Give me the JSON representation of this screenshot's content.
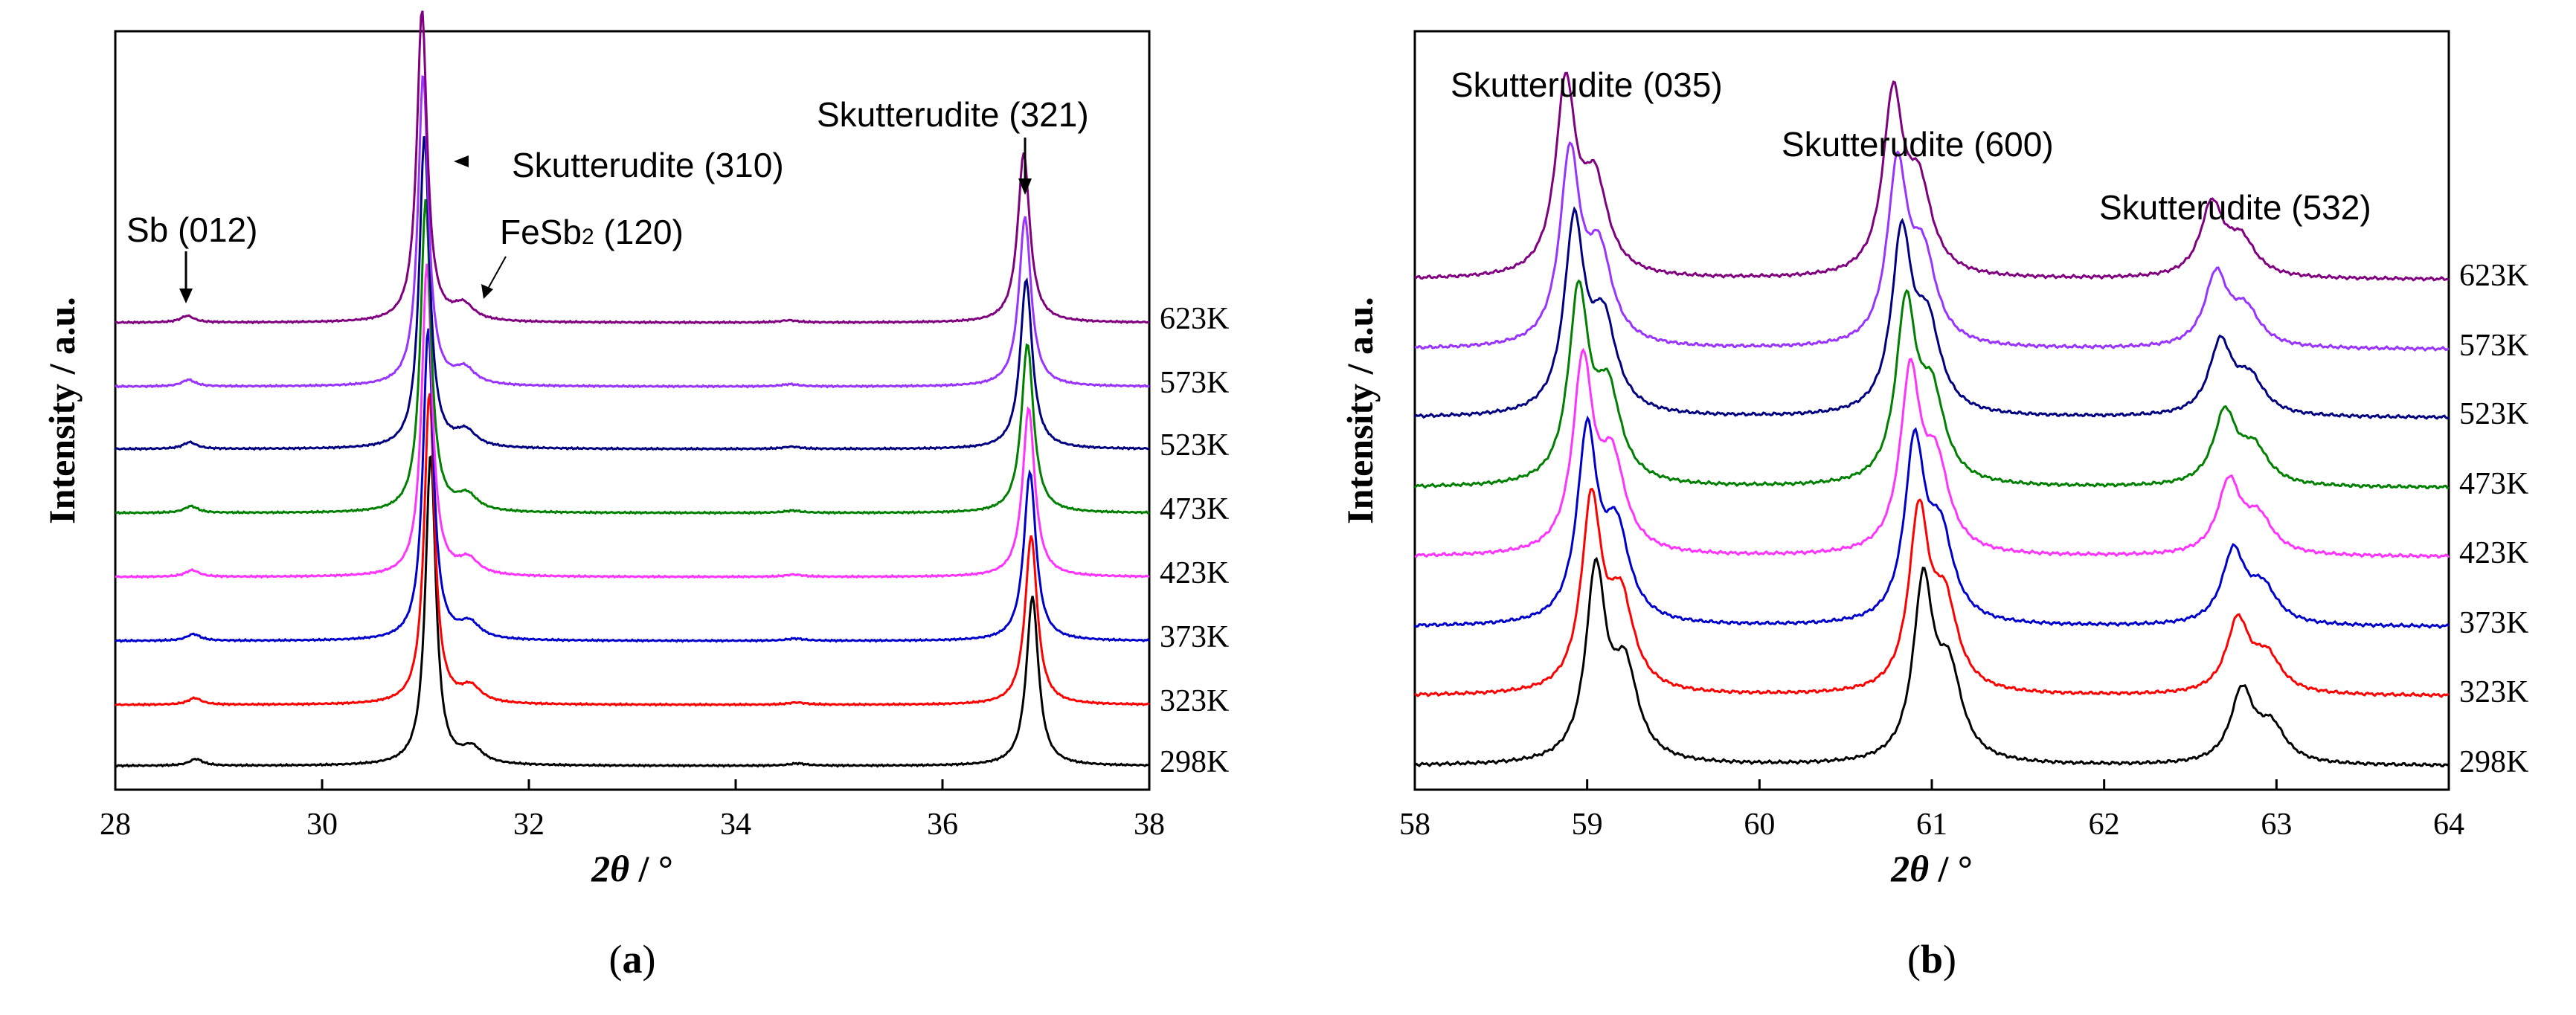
{
  "chart_data": [
    {
      "type": "line",
      "panel_label_open": "(",
      "panel_label_letter": "a",
      "panel_label_close": ")",
      "xlabel_theta": "2θ",
      "xlabel_unit": " / °",
      "ylabel": "Intensity / a.u.",
      "xlim": [
        28,
        38
      ],
      "xticks": [
        "28",
        "30",
        "32",
        "34",
        "36",
        "38"
      ],
      "series": [
        {
          "name": "298K",
          "color": "#000000",
          "peak_heights": [
            0.15,
            7.0,
            0.35,
            0.05,
            3.8
          ]
        },
        {
          "name": "323K",
          "color": "#ff0000",
          "peak_heights": [
            0.15,
            7.0,
            0.35,
            0.05,
            3.8
          ]
        },
        {
          "name": "373K",
          "color": "#0000cc",
          "peak_heights": [
            0.15,
            7.0,
            0.35,
            0.05,
            3.8
          ]
        },
        {
          "name": "423K",
          "color": "#ff33ff",
          "peak_heights": [
            0.15,
            7.0,
            0.35,
            0.05,
            3.8
          ]
        },
        {
          "name": "473K",
          "color": "#008000",
          "peak_heights": [
            0.15,
            7.0,
            0.35,
            0.05,
            3.8
          ]
        },
        {
          "name": "523K",
          "color": "#000080",
          "peak_heights": [
            0.15,
            7.0,
            0.35,
            0.05,
            3.8
          ]
        },
        {
          "name": "573K",
          "color": "#9933ff",
          "peak_heights": [
            0.15,
            7.0,
            0.35,
            0.05,
            3.8
          ]
        },
        {
          "name": "623K",
          "color": "#800080",
          "peak_heights": [
            0.15,
            7.0,
            0.35,
            0.05,
            3.8
          ]
        }
      ],
      "annotations": [
        {
          "name": "sb-012",
          "text": "Sb (012)"
        },
        {
          "name": "skutterudite-310",
          "text": "Skutterudite (310)"
        },
        {
          "name": "fesb2-120",
          "text_pre": "FeSb",
          "text_sub": "2",
          "text_post": " (120)"
        },
        {
          "name": "skutterudite-321",
          "text": "Skutterudite (321)"
        }
      ]
    },
    {
      "type": "line",
      "panel_label_open": "(",
      "panel_label_letter": "b",
      "panel_label_close": ")",
      "xlabel_theta": "2θ",
      "xlabel_unit": " / °",
      "ylabel": "Intensity / a.u.",
      "xlim": [
        58,
        64
      ],
      "xticks": [
        "58",
        "59",
        "60",
        "61",
        "62",
        "63",
        "64"
      ],
      "series": [
        {
          "name": "298K",
          "color": "#000000"
        },
        {
          "name": "323K",
          "color": "#ff0000"
        },
        {
          "name": "373K",
          "color": "#0000cc"
        },
        {
          "name": "423K",
          "color": "#ff33ff"
        },
        {
          "name": "473K",
          "color": "#008000"
        },
        {
          "name": "523K",
          "color": "#000080"
        },
        {
          "name": "573K",
          "color": "#9933ff"
        },
        {
          "name": "623K",
          "color": "#800080"
        }
      ],
      "annotations": [
        {
          "name": "skutterudite-035",
          "text": "Skutterudite (035)"
        },
        {
          "name": "skutterudite-600",
          "text": "Skutterudite (600)"
        },
        {
          "name": "skutterudite-532",
          "text": "Skutterudite (532)"
        }
      ]
    }
  ]
}
